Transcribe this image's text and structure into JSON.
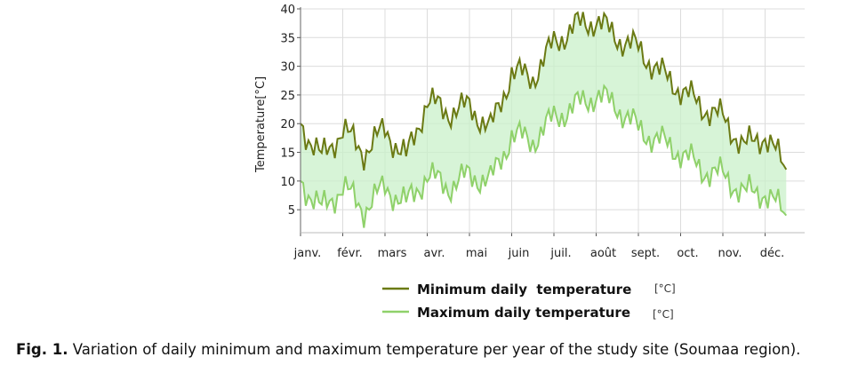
{
  "chart_data": {
    "type": "line",
    "title": "",
    "ylabel": "Temperature[°C]",
    "xlabel": "",
    "ylim": [
      1,
      40
    ],
    "y_ticks": [
      5,
      10,
      15,
      20,
      25,
      30,
      35,
      40
    ],
    "x_tick_labels": [
      "janv.",
      "févr.",
      "mars",
      "avr.",
      "mai",
      "juin",
      "juil.",
      "août",
      "sept.",
      "oct.",
      "nov.",
      "déc."
    ],
    "grid": true,
    "band_between_series": true,
    "legend_placement": "bottom",
    "x_unit": "month",
    "x": [
      0.0,
      0.5,
      1.0,
      1.5,
      2.0,
      2.5,
      3.0,
      3.5,
      4.0,
      4.5,
      5.0,
      5.5,
      6.0,
      6.5,
      7.0,
      7.5,
      8.0,
      8.5,
      9.0,
      9.5,
      10.0,
      10.5,
      11.0,
      11.5
    ],
    "series": [
      {
        "name": "Minimum daily  temperature",
        "unit": "[°C]",
        "color": "#6b7a14",
        "values": [
          20,
          14,
          19,
          15,
          19,
          14,
          24,
          22,
          23,
          19,
          29,
          28,
          34,
          37,
          38,
          35,
          33,
          29,
          26,
          23,
          21,
          16,
          18,
          12
        ]
      },
      {
        "name": "Maximum daily temperature",
        "unit": "[°C]",
        "color": "#8fd16a",
        "values": [
          10,
          5,
          9,
          5,
          9,
          6,
          11,
          9,
          11,
          10,
          18,
          17,
          21,
          23,
          25,
          23,
          19,
          17,
          15,
          12,
          11,
          8,
          8,
          4
        ]
      }
    ]
  },
  "legend": {
    "min_label": "Minimum daily  temperature",
    "min_unit": "[°C]",
    "max_label": "Maximum daily temperature",
    "max_unit": "[°C]"
  },
  "caption": {
    "label": "Fig. 1.",
    "text": " Variation of daily minimum and maximum temperature per year of the study site (Soumaa region)."
  },
  "colors": {
    "band_fill": "#c9f0c9",
    "grid": "#dcdcdc"
  }
}
